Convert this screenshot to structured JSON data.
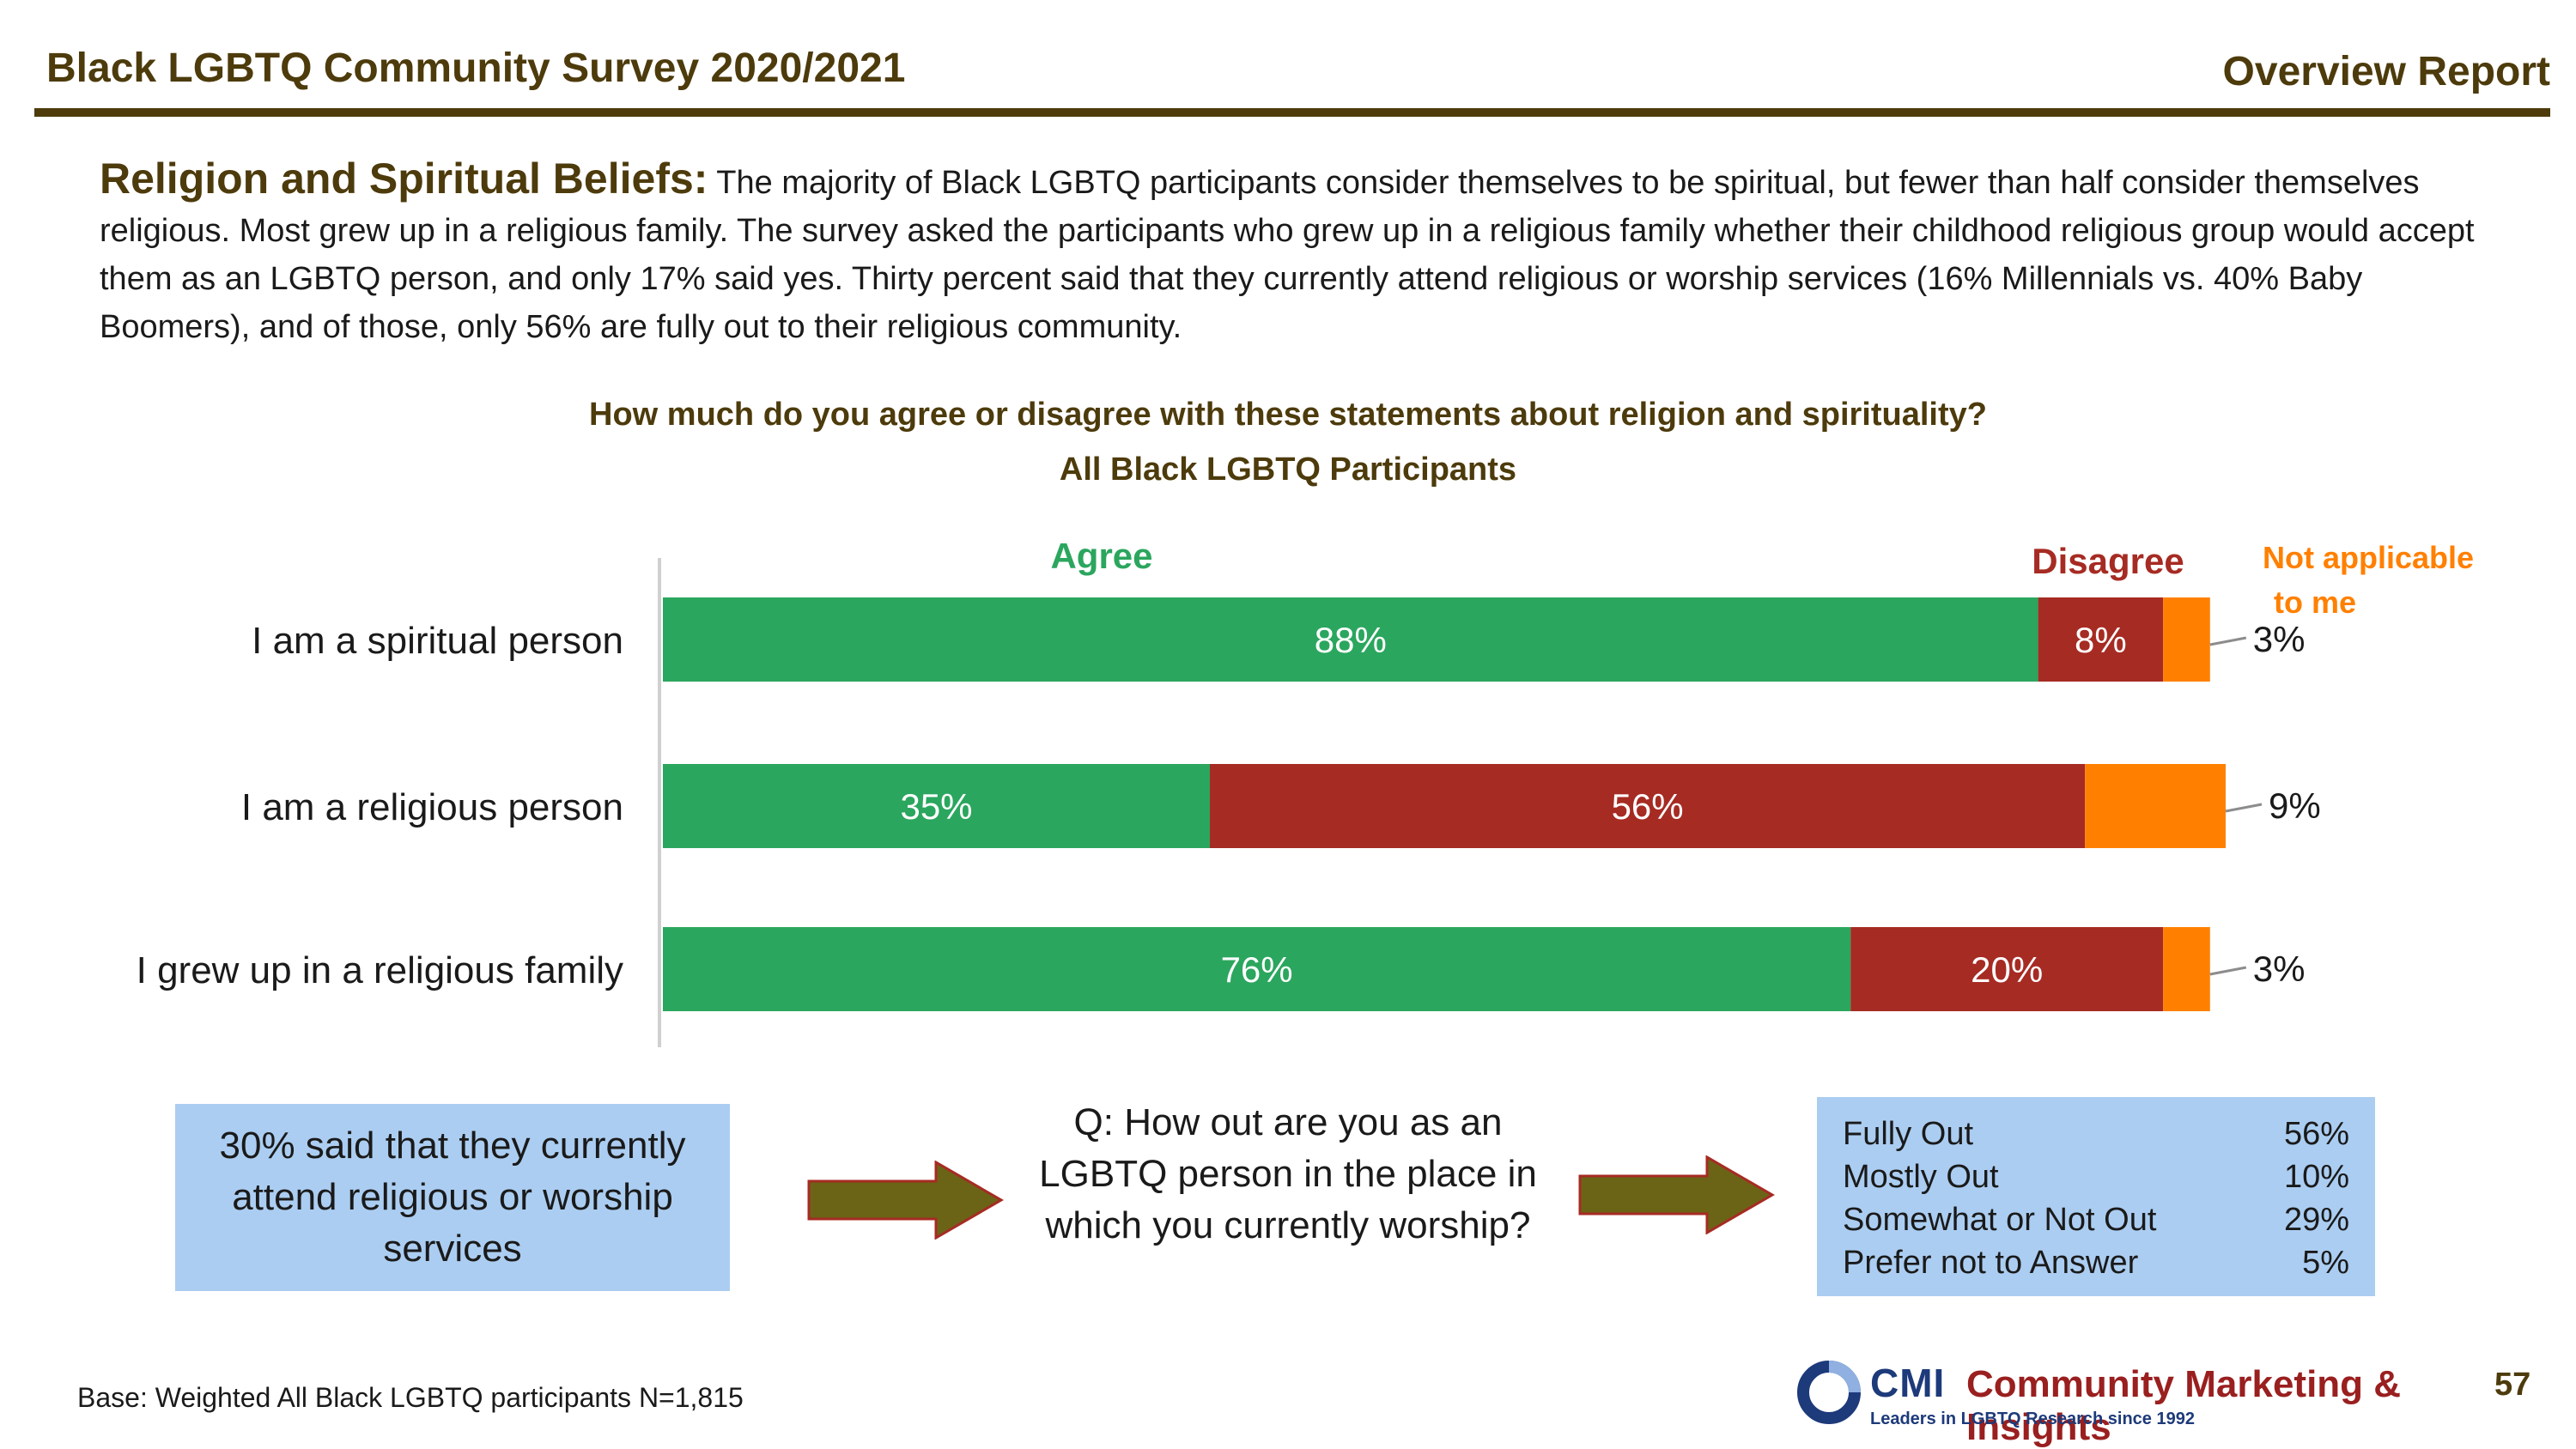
{
  "header": {
    "title": "Black LGBTQ Community Survey 2020/2021",
    "report": "Overview Report"
  },
  "section": {
    "heading": "Religion and Spiritual Beliefs:",
    "body": " The majority of Black LGBTQ participants consider themselves to be spiritual, but fewer than half consider themselves religious. Most grew up in a religious family. The survey asked the participants who grew up in a religious family whether their childhood religious group would accept them as an LGBTQ person, and only 17% said yes. Thirty percent said that they currently attend religious or worship services (16% Millennials vs. 40% Baby Boomers), and of those, only 56% are fully out to their religious community."
  },
  "chart_data": {
    "type": "bar",
    "orientation": "horizontal",
    "stacked": true,
    "title": "How much do you agree or disagree with these statements about religion and spirituality?",
    "subtitle": "All Black LGBTQ Participants",
    "categories": [
      "I am a spiritual person",
      "I am a religious person",
      "I grew up in a religious family"
    ],
    "series": [
      {
        "name": "Agree",
        "values": [
          88,
          35,
          76
        ],
        "color": "#2ba65e",
        "labels": [
          "88%",
          "35%",
          "76%"
        ]
      },
      {
        "name": "Disagree",
        "values": [
          8,
          56,
          20
        ],
        "color": "#a62b23",
        "labels": [
          "8%",
          "56%",
          "20%"
        ]
      },
      {
        "name": "Not applicable to me",
        "values": [
          3,
          9,
          3
        ],
        "color": "#ff8000",
        "labels": [
          "3%",
          "9%",
          "3%"
        ]
      }
    ],
    "legend": {
      "agree": "Agree",
      "disagree": "Disagree",
      "na_line1": "Not applicable",
      "na_line2": "to me"
    },
    "xlim": [
      0,
      100
    ],
    "grid": false
  },
  "flow": {
    "left_box": "30% said that they currently attend religious or worship services",
    "question": "Q: How out are you as an LGBTQ person in the place in which you currently worship?",
    "arrow_color": "#6b6416",
    "arrow_border": "#a62b23",
    "results": [
      {
        "label": "Fully Out",
        "value": "56%"
      },
      {
        "label": "Mostly Out",
        "value": "10%"
      },
      {
        "label": "Somewhat or Not Out",
        "value": "29%"
      },
      {
        "label": "Prefer not to Answer",
        "value": "5%"
      }
    ]
  },
  "footer": {
    "base": "Base: Weighted All Black LGBTQ participants  N=1,815",
    "logo_cmi": "CMI",
    "logo_company": "Community Marketing & Insights",
    "logo_tagline": "Leaders in LGBTQ Research since 1992",
    "page_number": "57"
  },
  "colors": {
    "brand_brown": "#4d3b0c",
    "box_blue": "#abcdf1"
  }
}
